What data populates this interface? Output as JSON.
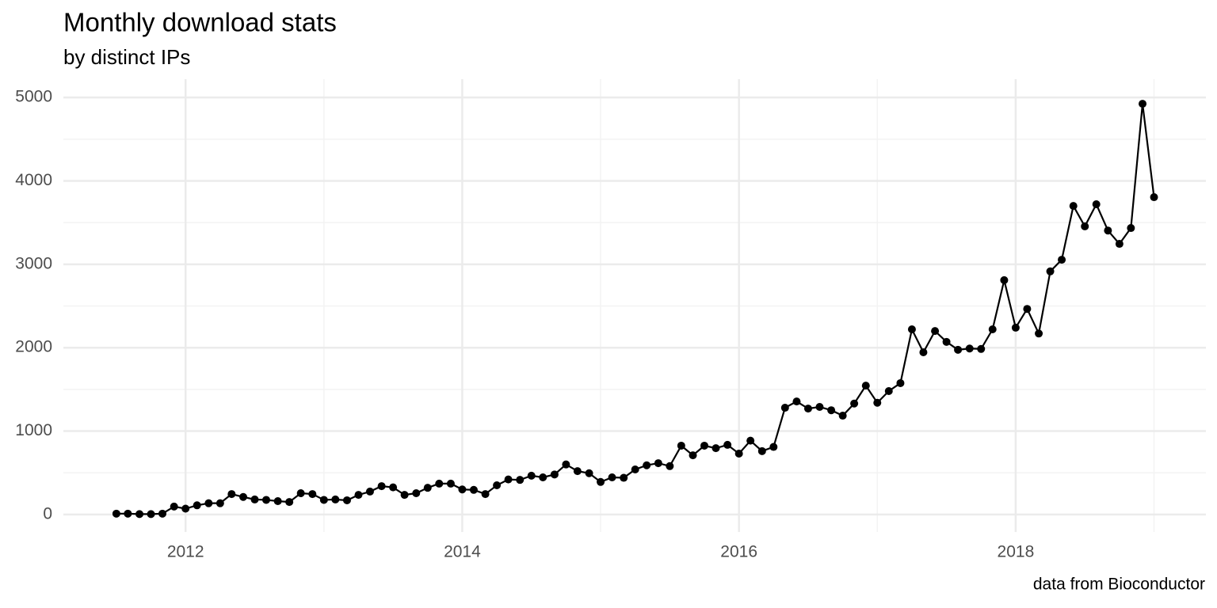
{
  "chart_data": {
    "type": "line",
    "title": "Monthly download stats",
    "subtitle": "by distinct IPs",
    "caption": "data from Bioconductor",
    "color": "#000000",
    "grid": true,
    "x": [
      2011.5,
      2011.583,
      2011.667,
      2011.75,
      2011.833,
      2011.917,
      2012,
      2012.083,
      2012.167,
      2012.25,
      2012.333,
      2012.417,
      2012.5,
      2012.583,
      2012.667,
      2012.75,
      2012.833,
      2012.917,
      2013,
      2013.083,
      2013.167,
      2013.25,
      2013.333,
      2013.417,
      2013.5,
      2013.583,
      2013.667,
      2013.75,
      2013.833,
      2013.917,
      2014,
      2014.083,
      2014.167,
      2014.25,
      2014.333,
      2014.417,
      2014.5,
      2014.583,
      2014.667,
      2014.75,
      2014.833,
      2014.917,
      2015,
      2015.083,
      2015.167,
      2015.25,
      2015.333,
      2015.417,
      2015.5,
      2015.583,
      2015.667,
      2015.75,
      2015.833,
      2015.917,
      2016,
      2016.083,
      2016.167,
      2016.25,
      2016.333,
      2016.417,
      2016.5,
      2016.583,
      2016.667,
      2016.75,
      2016.833,
      2016.917,
      2017,
      2017.083,
      2017.167,
      2017.25,
      2017.333,
      2017.417,
      2017.5,
      2017.583,
      2017.667,
      2017.75,
      2017.833,
      2017.917,
      2018,
      2018.083,
      2018.167,
      2018.25,
      2018.333,
      2018.417,
      2018.5,
      2018.583,
      2018.667,
      2018.75,
      2018.833,
      2018.917,
      2019
    ],
    "values": [
      10,
      10,
      5,
      5,
      10,
      95,
      70,
      110,
      135,
      135,
      245,
      210,
      180,
      175,
      160,
      150,
      255,
      245,
      175,
      180,
      170,
      235,
      275,
      340,
      325,
      235,
      255,
      320,
      370,
      370,
      300,
      295,
      245,
      350,
      420,
      415,
      465,
      445,
      480,
      600,
      520,
      495,
      390,
      445,
      440,
      540,
      590,
      615,
      580,
      825,
      710,
      825,
      795,
      835,
      730,
      885,
      760,
      810,
      1280,
      1355,
      1270,
      1290,
      1250,
      1185,
      1330,
      1545,
      1340,
      1480,
      1575,
      2220,
      1945,
      2200,
      2070,
      1975,
      1990,
      1985,
      2220,
      2810,
      2240,
      2465,
      2170,
      2915,
      3055,
      3700,
      3455,
      3720,
      3405,
      3245,
      3435,
      4925,
      3805
    ],
    "xlim": [
      2011.117,
      2019.375
    ],
    "xticks": [
      2012,
      2014,
      2016,
      2018
    ],
    "ylim": [
      -210,
      5220
    ],
    "yticks": [
      0,
      1000,
      2000,
      3000,
      4000,
      5000
    ]
  }
}
